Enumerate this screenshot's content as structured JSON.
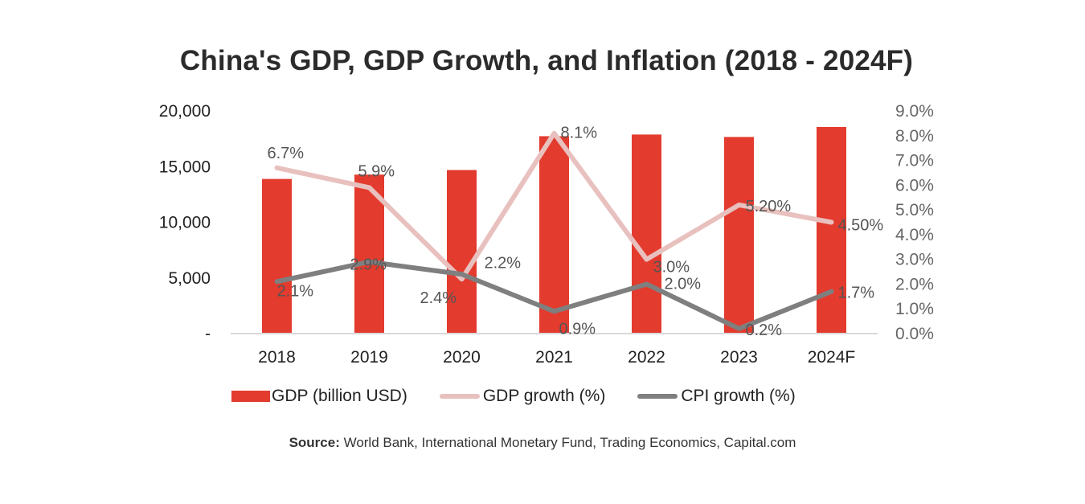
{
  "chart_data": {
    "type": "bar",
    "title": "China's GDP, GDP Growth, and Inflation (2018 - 2024F)",
    "categories": [
      "2018",
      "2019",
      "2020",
      "2021",
      "2022",
      "2023",
      "2024F"
    ],
    "series": [
      {
        "name": "GDP (billion USD)",
        "type": "bar",
        "axis": "left",
        "color": "#e33b2e",
        "values": [
          13890,
          14280,
          14690,
          17730,
          17880,
          17660,
          18560
        ]
      },
      {
        "name": "GDP growth (%)",
        "type": "line",
        "axis": "right",
        "color": "#e8c1bf",
        "values": [
          6.7,
          5.9,
          2.2,
          8.1,
          3.0,
          5.2,
          4.5
        ],
        "labels": [
          "6.7%",
          "5.9%",
          "2.2%",
          "8.1%",
          "3.0%",
          "5.20%",
          "4.50%"
        ]
      },
      {
        "name": "CPI growth (%)",
        "type": "line",
        "axis": "right",
        "color": "#7f7f7f",
        "values": [
          2.1,
          2.9,
          2.4,
          0.9,
          2.0,
          0.2,
          1.7
        ],
        "labels": [
          "2.1%",
          "2.9%",
          "2.4%",
          "0.9%",
          "2.0%",
          "0.2%",
          "1.7%"
        ]
      }
    ],
    "y_left": {
      "ylim": [
        0,
        20000
      ],
      "ticks": [
        "-",
        "5,000",
        "10,000",
        "15,000",
        "20,000"
      ]
    },
    "y_right": {
      "ylim": [
        0,
        9
      ],
      "ticks": [
        "0.0%",
        "1.0%",
        "2.0%",
        "3.0%",
        "4.0%",
        "5.0%",
        "6.0%",
        "7.0%",
        "8.0%",
        "9.0%"
      ]
    },
    "xlabel": "",
    "ylabel": "",
    "grid": false,
    "legend_position": "bottom"
  },
  "source": {
    "label": "Source:",
    "text": " World Bank, International Monetary Fund, Trading Economics, Capital.com"
  }
}
